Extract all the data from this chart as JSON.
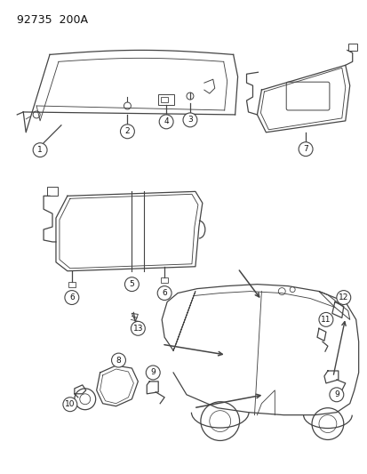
{
  "title": "92735  200A",
  "bg_color": "#ffffff",
  "line_color": "#444444",
  "text_color": "#111111",
  "fig_width": 4.14,
  "fig_height": 5.33,
  "dpi": 100,
  "title_fontsize": 9,
  "label_fontsize": 6.5
}
